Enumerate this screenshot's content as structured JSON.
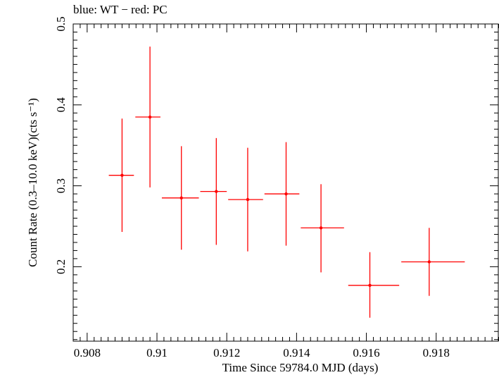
{
  "header": {
    "title": "blue: WT − red: PC"
  },
  "colors": {
    "pc": "#ff0000",
    "axis": "#000000"
  },
  "chart_data": {
    "type": "scatter",
    "title": "blue: WT − red: PC",
    "xlabel": "Time Since 59784.0 MJD (days)",
    "ylabel": "Count Rate (0.3–10.0 keV)(cts s⁻¹)",
    "xlim": [
      0.9076,
      0.9198
    ],
    "ylim": [
      0.108,
      0.5
    ],
    "grid": false,
    "x_ticks": [
      {
        "value": 0.908,
        "label": "0.908"
      },
      {
        "value": 0.91,
        "label": "0.91"
      },
      {
        "value": 0.912,
        "label": "0.912"
      },
      {
        "value": 0.914,
        "label": "0.914"
      },
      {
        "value": 0.916,
        "label": "0.916"
      },
      {
        "value": 0.918,
        "label": "0.918"
      }
    ],
    "y_ticks": [
      {
        "value": 0.2,
        "label": "0.2"
      },
      {
        "value": 0.3,
        "label": "0.3"
      },
      {
        "value": 0.4,
        "label": "0.4"
      },
      {
        "value": 0.5,
        "label": "0.5"
      }
    ],
    "series": [
      {
        "color": "#ff0000",
        "points": [
          {
            "x": 0.909,
            "y": 0.313,
            "xlo": 0.90862,
            "xhi": 0.90934,
            "ylo": 0.243,
            "yhi": 0.383
          },
          {
            "x": 0.9098,
            "y": 0.385,
            "xlo": 0.90938,
            "xhi": 0.9101,
            "ylo": 0.298,
            "yhi": 0.472
          },
          {
            "x": 0.9107,
            "y": 0.285,
            "xlo": 0.91014,
            "xhi": 0.9112,
            "ylo": 0.221,
            "yhi": 0.349
          },
          {
            "x": 0.9117,
            "y": 0.293,
            "xlo": 0.91124,
            "xhi": 0.912,
            "ylo": 0.227,
            "yhi": 0.359
          },
          {
            "x": 0.9126,
            "y": 0.283,
            "xlo": 0.91204,
            "xhi": 0.91304,
            "ylo": 0.219,
            "yhi": 0.347
          },
          {
            "x": 0.9137,
            "y": 0.29,
            "xlo": 0.91308,
            "xhi": 0.91408,
            "ylo": 0.226,
            "yhi": 0.354
          },
          {
            "x": 0.9147,
            "y": 0.248,
            "xlo": 0.91412,
            "xhi": 0.91536,
            "ylo": 0.193,
            "yhi": 0.302
          },
          {
            "x": 0.9161,
            "y": 0.177,
            "xlo": 0.91548,
            "xhi": 0.91694,
            "ylo": 0.137,
            "yhi": 0.218
          },
          {
            "x": 0.9178,
            "y": 0.206,
            "xlo": 0.917,
            "xhi": 0.91882,
            "ylo": 0.164,
            "yhi": 0.248
          }
        ]
      }
    ]
  }
}
